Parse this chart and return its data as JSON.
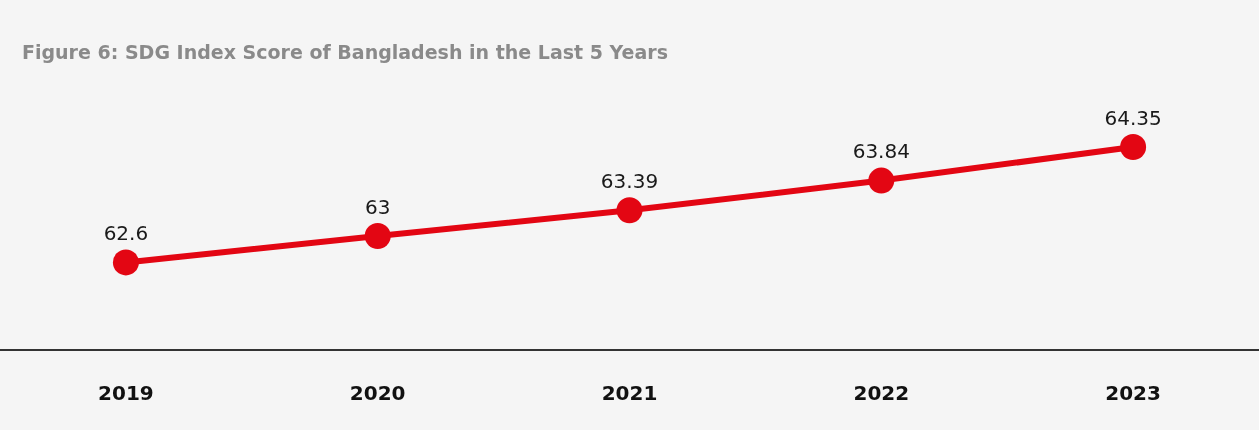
{
  "chart_data": {
    "type": "line",
    "title": "Figure 6: SDG Index Score of Bangladesh in the Last 5 Years",
    "categories": [
      "2019",
      "2020",
      "2021",
      "2022",
      "2023"
    ],
    "values": [
      62.6,
      63,
      63.39,
      63.84,
      64.35
    ],
    "color": "#e30613",
    "marker": "circle",
    "line_style": "solid",
    "data_labels": true,
    "grid": false,
    "legend": false
  }
}
